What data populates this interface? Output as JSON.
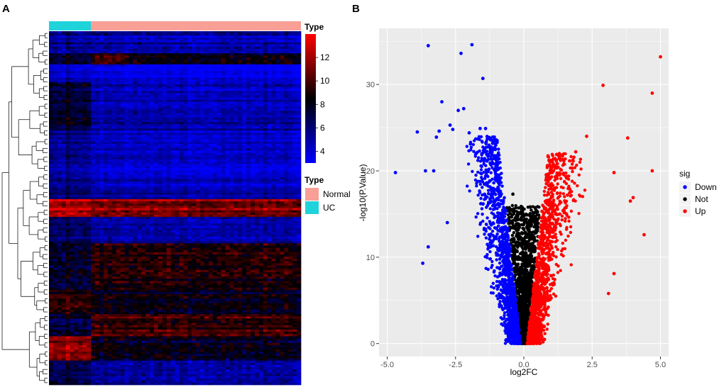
{
  "colors": {
    "normal": "#F8A096",
    "uc": "#1FD3DA",
    "low": "#0000FF",
    "mid": "#000000",
    "high": "#FF0000",
    "panel_bg": "#EBEBEB",
    "grid": "#FFFFFF",
    "down": "#0000FF",
    "not": "#000000",
    "up": "#FF0000"
  },
  "chart_data": [
    {
      "type": "heatmap",
      "panel_label": "A",
      "annotation": {
        "title": "Type",
        "groups": [
          {
            "name": "UC",
            "samples": 10
          },
          {
            "name": "Normal",
            "samples": 50
          }
        ]
      },
      "color_scale": {
        "title": "Type",
        "ticks": [
          "4",
          "6",
          "8",
          "10",
          "12"
        ],
        "range": [
          3,
          14
        ],
        "stops": [
          [
            3,
            "#0000FF"
          ],
          [
            8.5,
            "#000000"
          ],
          [
            14,
            "#FF0000"
          ]
        ]
      },
      "legend": {
        "title": "Type",
        "entries": [
          {
            "label": "Normal",
            "color": "#F8A096"
          },
          {
            "label": "UC",
            "color": "#1FD3DA"
          }
        ]
      },
      "rows": 160,
      "columns": 60,
      "row_dendrogram": true
    },
    {
      "type": "scatter",
      "panel_label": "B",
      "xlabel": "log2FC",
      "ylabel": "-log10(P.Value)",
      "xlim": [
        -5.3,
        5.3
      ],
      "ylim": [
        -1.5,
        36.5
      ],
      "xticks": [
        "-5.0",
        "-2.5",
        "0.0",
        "2.5",
        "5.0"
      ],
      "yticks": [
        "0",
        "10",
        "20",
        "30"
      ],
      "legend": {
        "title": "sig",
        "entries": [
          {
            "label": "Down",
            "color": "#0000FF"
          },
          {
            "label": "Not",
            "color": "#000000"
          },
          {
            "label": "Up",
            "color": "#FF0000"
          }
        ]
      },
      "series": [
        {
          "name": "Down",
          "color": "#0000FF",
          "points": [
            [
              -3.5,
              34.5
            ],
            [
              -1.9,
              34.6
            ],
            [
              -2.3,
              33.6
            ],
            [
              -1.5,
              30.7
            ],
            [
              -3.0,
              28.0
            ],
            [
              -2.4,
              27.0
            ],
            [
              -2.2,
              27.2
            ],
            [
              -3.9,
              24.5
            ],
            [
              -3.1,
              24.6
            ],
            [
              -2.6,
              24.8
            ],
            [
              -2.7,
              25.3
            ],
            [
              -3.2,
              23.9
            ],
            [
              -1.6,
              24.9
            ],
            [
              -1.4,
              24.9
            ],
            [
              -2.0,
              24.4
            ],
            [
              -4.7,
              19.8
            ],
            [
              -3.6,
              20.0
            ],
            [
              -3.3,
              20.0
            ],
            [
              -2.8,
              14.0
            ],
            [
              -3.5,
              11.2
            ],
            [
              -3.7,
              9.3
            ]
          ]
        },
        {
          "name": "Not",
          "color": "#000000",
          "points": [
            [
              -0.4,
              17.3
            ],
            [
              0.3,
              14.3
            ],
            [
              -0.2,
              12.1
            ],
            [
              0.1,
              11.2
            ]
          ]
        },
        {
          "name": "Up",
          "color": "#FF0000",
          "points": [
            [
              5.0,
              33.2
            ],
            [
              2.9,
              29.9
            ],
            [
              4.7,
              29.0
            ],
            [
              2.3,
              24.0
            ],
            [
              3.8,
              23.8
            ],
            [
              1.9,
              22.2
            ],
            [
              1.3,
              22.0
            ],
            [
              1.2,
              21.9
            ],
            [
              4.7,
              20.0
            ],
            [
              3.3,
              19.8
            ],
            [
              4.0,
              16.9
            ],
            [
              3.9,
              16.5
            ],
            [
              4.4,
              12.6
            ],
            [
              3.3,
              8.1
            ],
            [
              3.1,
              5.8
            ]
          ]
        }
      ],
      "cloud_note": "Thousands of additional points form the volcano-shaped cloud; generated procedurally for rendering."
    }
  ]
}
